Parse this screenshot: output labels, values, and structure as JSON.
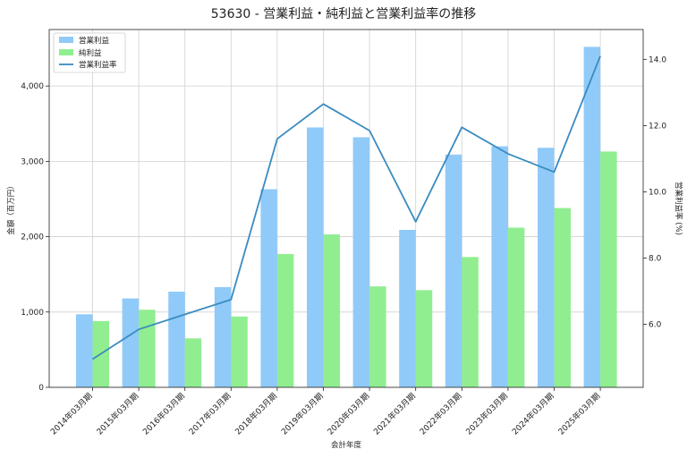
{
  "chart_data": {
    "type": "bar",
    "title": "53630 - 営業利益・純利益と営業利益率の推移",
    "xlabel": "会計年度",
    "ylabel": "金額（百万円）",
    "y2label": "営業利益率 (%)",
    "categories": [
      "2014年03月期",
      "2015年03月期",
      "2016年03月期",
      "2017年03月期",
      "2018年03月期",
      "2019年03月期",
      "2020年03月期",
      "2021年03月期",
      "2022年03月期",
      "2023年03月期",
      "2024年03月期",
      "2025年03月期"
    ],
    "series": [
      {
        "name": "営業利益",
        "kind": "bar",
        "axis": "left",
        "color": "#90CAF9",
        "values": [
          970,
          1180,
          1270,
          1330,
          2630,
          3450,
          3320,
          2090,
          3090,
          3200,
          3180,
          4520
        ]
      },
      {
        "name": "純利益",
        "kind": "bar",
        "axis": "left",
        "color": "#90EE90",
        "values": [
          880,
          1030,
          650,
          940,
          1770,
          2030,
          1340,
          1290,
          1730,
          2120,
          2380,
          3130
        ]
      },
      {
        "name": "営業利益率",
        "kind": "line",
        "axis": "right",
        "color": "#3A8BC0",
        "values": [
          4.95,
          5.85,
          6.3,
          6.75,
          11.6,
          12.65,
          11.85,
          9.1,
          11.95,
          11.15,
          10.6,
          14.1
        ]
      }
    ],
    "ylim": [
      0,
      4750
    ],
    "yticks": [
      0,
      1000,
      2000,
      3000,
      4000
    ],
    "ytick_labels": [
      "0",
      "1,000",
      "2,000",
      "3,000",
      "4,000"
    ],
    "y2lim": [
      4.1,
      14.9
    ],
    "y2ticks": [
      6,
      8,
      10,
      12,
      14
    ],
    "y2tick_labels": [
      "6.0",
      "8.0",
      "10.0",
      "12.0",
      "14.0"
    ],
    "grid": true,
    "legend_position": "top-left"
  }
}
